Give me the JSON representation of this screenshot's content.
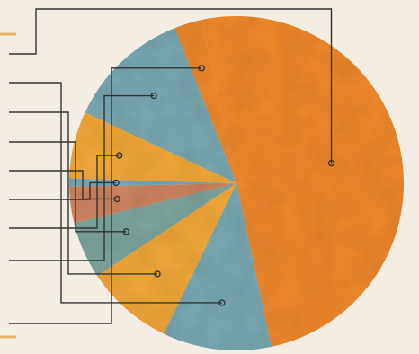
{
  "chart_data": {
    "type": "pie",
    "title": "",
    "values": [
      50.0,
      10.5,
      8.5,
      5.5,
      3.5,
      0.8,
      6.5,
      12.0,
      2.7
    ],
    "colors": {
      "orange": "#f0892f",
      "teal": "#7aa9b3",
      "amber": "#f2a93b",
      "grayTeal": "#7fa59f",
      "terracotta": "#cf8560",
      "accentLine": "#e8b36a",
      "leader": "#333333",
      "background": "#f3ede3"
    }
  }
}
